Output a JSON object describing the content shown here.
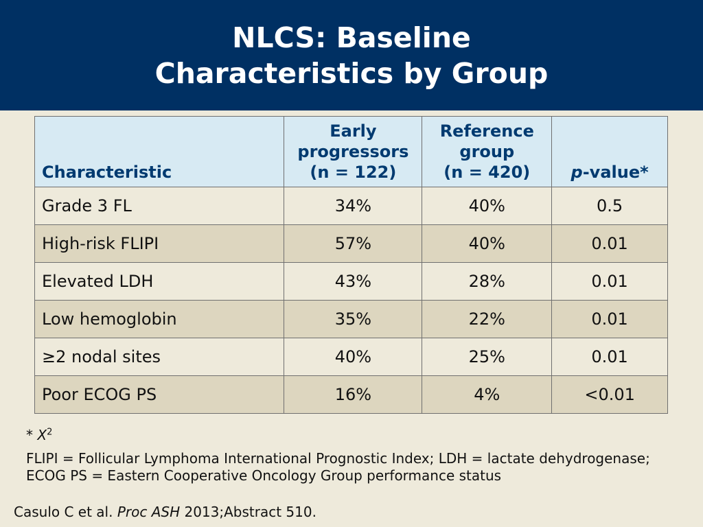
{
  "header": {
    "title_line1": "NLCS: Baseline",
    "title_line2": "Characteristics by Group"
  },
  "table": {
    "headers": {
      "characteristic": "Characteristic",
      "early": [
        "Early",
        "progressors",
        "(n = 122)"
      ],
      "reference": [
        "Reference",
        "group",
        "(n = 420)"
      ],
      "pvalue_italic": "p",
      "pvalue_rest": "-value*"
    },
    "rows": [
      {
        "characteristic": "Grade 3 FL",
        "early": "34%",
        "reference": "40%",
        "p": "0.5"
      },
      {
        "characteristic": "High-risk FLIPI",
        "early": "57%",
        "reference": "40%",
        "p": "0.01"
      },
      {
        "characteristic": "Elevated LDH",
        "early": "43%",
        "reference": "28%",
        "p": "0.01"
      },
      {
        "characteristic": "Low hemoglobin",
        "early": "35%",
        "reference": "22%",
        "p": "0.01"
      },
      {
        "characteristic": "≥2 nodal sites",
        "early": "40%",
        "reference": "25%",
        "p": "0.01"
      },
      {
        "characteristic": "Poor ECOG PS",
        "early": "16%",
        "reference": "4%",
        "p": "<0.01"
      }
    ]
  },
  "footnotes": {
    "star": "* ",
    "chi": "X",
    "chi_sup": "2",
    "abbreviations": "FLIPI = Follicular Lymphoma International Prognostic Index; LDH = lactate dehydrogenase; ECOG PS = Eastern Cooperative Oncology Group performance status"
  },
  "citation": {
    "authors": "Casulo C et al. ",
    "journal": "Proc ASH",
    "rest": " 2013;Abstract 510."
  }
}
